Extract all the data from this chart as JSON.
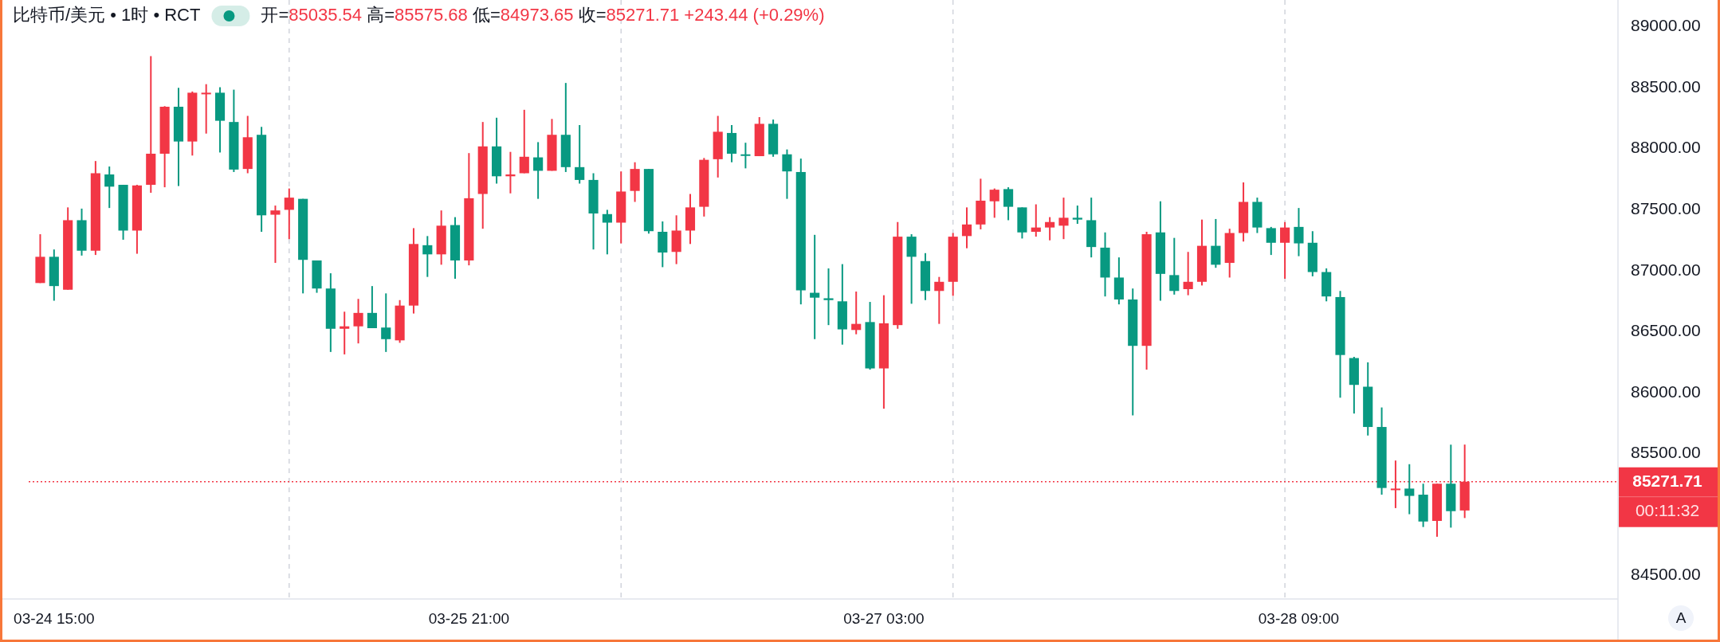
{
  "chart_data": {
    "type": "candlestick",
    "title": "比特币/美元 • 1时 • RCT",
    "subtitle": "开=85035.54 高=85575.68 低=84973.65 收=85271.71 +243.44 (+0.29%)",
    "x": [
      "--03-24T14:00",
      "--03-24T15:00",
      "--03-24T16:00",
      "--03-24T17:00",
      "--03-24T18:00",
      "--03-24T19:00",
      "--03-24T20:00",
      "--03-24T21:00",
      "--03-24T22:00",
      "--03-24T23:00",
      "--03-25T00:00",
      "--03-25T01:00",
      "--03-25T02:00",
      "--03-25T03:00",
      "--03-25T04:00",
      "--03-25T05:00",
      "--03-25T06:00",
      "--03-25T07:00",
      "--03-25T08:00",
      "--03-25T09:00",
      "--03-25T10:00",
      "--03-25T11:00",
      "--03-25T12:00",
      "--03-25T13:00",
      "--03-25T14:00",
      "--03-25T15:00",
      "--03-25T16:00",
      "--03-25T17:00",
      "--03-25T18:00",
      "--03-25T19:00",
      "--03-25T20:00",
      "--03-25T21:00",
      "--03-25T22:00",
      "--03-25T23:00",
      "--03-26T00:00",
      "--03-26T01:00",
      "--03-26T02:00",
      "--03-26T03:00",
      "--03-26T04:00",
      "--03-26T05:00",
      "--03-26T06:00",
      "--03-26T07:00",
      "--03-26T08:00",
      "--03-26T09:00",
      "--03-26T10:00",
      "--03-26T11:00",
      "--03-26T12:00",
      "--03-26T13:00",
      "--03-26T14:00",
      "--03-26T15:00",
      "--03-26T16:00",
      "--03-26T17:00",
      "--03-26T18:00",
      "--03-26T19:00",
      "--03-26T20:00",
      "--03-26T21:00",
      "--03-26T22:00",
      "--03-26T23:00",
      "--03-27T00:00",
      "--03-27T01:00",
      "--03-27T02:00",
      "--03-27T03:00",
      "--03-27T04:00",
      "--03-27T05:00",
      "--03-27T06:00",
      "--03-27T07:00",
      "--03-27T08:00",
      "--03-27T09:00",
      "--03-27T10:00",
      "--03-27T11:00",
      "--03-27T12:00",
      "--03-27T13:00",
      "--03-27T14:00",
      "--03-27T15:00",
      "--03-27T16:00",
      "--03-27T17:00",
      "--03-27T18:00",
      "--03-27T19:00",
      "--03-27T20:00",
      "--03-27T21:00",
      "--03-27T22:00",
      "--03-27T23:00",
      "--03-28T00:00",
      "--03-28T01:00",
      "--03-28T02:00",
      "--03-28T03:00",
      "--03-28T04:00",
      "--03-28T05:00",
      "--03-28T06:00",
      "--03-28T07:00",
      "--03-28T08:00",
      "--03-28T09:00",
      "--03-28T10:00",
      "--03-28T11:00",
      "--03-28T12:00",
      "--03-28T13:00",
      "--03-28T14:00",
      "--03-28T15:00",
      "--03-28T16:00",
      "--03-28T17:00",
      "--03-28T18:00",
      "--03-28T19:00",
      "--03-28T20:00",
      "--03-28T21:00"
    ],
    "ohlc": [
      [
        86900,
        87300,
        86900,
        87115
      ],
      [
        87115,
        87175,
        86755,
        86875
      ],
      [
        86845,
        87520,
        86845,
        87415
      ],
      [
        87415,
        87510,
        87125,
        87165
      ],
      [
        87165,
        87900,
        87130,
        87800
      ],
      [
        87790,
        87855,
        87515,
        87690
      ],
      [
        87705,
        87705,
        87255,
        87330
      ],
      [
        87330,
        87705,
        87140,
        87700
      ],
      [
        87705,
        88760,
        87640,
        87960
      ],
      [
        87960,
        88350,
        87685,
        88345
      ],
      [
        88345,
        88500,
        87695,
        88060
      ],
      [
        88060,
        88470,
        87945,
        88460
      ],
      [
        88450,
        88530,
        88125,
        88460
      ],
      [
        88460,
        88505,
        87970,
        88230
      ],
      [
        88220,
        88485,
        87810,
        87830
      ],
      [
        87835,
        88270,
        87800,
        88095
      ],
      [
        88115,
        88180,
        87320,
        87455
      ],
      [
        87460,
        87535,
        87065,
        87495
      ],
      [
        87500,
        87675,
        87260,
        87600
      ],
      [
        87590,
        87590,
        86815,
        87090
      ],
      [
        87085,
        87085,
        86820,
        86855
      ],
      [
        86855,
        86980,
        86335,
        86525
      ],
      [
        86525,
        86665,
        86315,
        86545
      ],
      [
        86545,
        86770,
        86405,
        86655
      ],
      [
        86655,
        86875,
        86530,
        86530
      ],
      [
        86535,
        86815,
        86335,
        86440
      ],
      [
        86430,
        86760,
        86410,
        86715
      ],
      [
        86715,
        87350,
        86650,
        87220
      ],
      [
        87210,
        87285,
        86950,
        87135
      ],
      [
        87135,
        87495,
        87050,
        87370
      ],
      [
        87375,
        87440,
        86935,
        87085
      ],
      [
        87085,
        87965,
        87045,
        87595
      ],
      [
        87630,
        88220,
        87345,
        88020
      ],
      [
        88020,
        88255,
        87715,
        87775
      ],
      [
        87775,
        87975,
        87635,
        87790
      ],
      [
        87800,
        88320,
        87800,
        87935
      ],
      [
        87930,
        88055,
        87590,
        87820
      ],
      [
        87820,
        88245,
        87820,
        88115
      ],
      [
        88115,
        88540,
        87810,
        87850
      ],
      [
        87850,
        88195,
        87715,
        87745
      ],
      [
        87745,
        87800,
        87175,
        87470
      ],
      [
        87465,
        87500,
        87135,
        87395
      ],
      [
        87395,
        87815,
        87225,
        87650
      ],
      [
        87655,
        87890,
        87565,
        87835
      ],
      [
        87835,
        87835,
        87305,
        87325
      ],
      [
        87320,
        87405,
        87030,
        87150
      ],
      [
        87155,
        87455,
        87055,
        87330
      ],
      [
        87330,
        87630,
        87220,
        87520
      ],
      [
        87525,
        87925,
        87445,
        87910
      ],
      [
        87915,
        88270,
        87765,
        88140
      ],
      [
        88130,
        88195,
        87890,
        87960
      ],
      [
        87955,
        88050,
        87840,
        87945
      ],
      [
        87940,
        88260,
        87940,
        88205
      ],
      [
        88205,
        88240,
        87935,
        87955
      ],
      [
        87955,
        87995,
        87590,
        87815
      ],
      [
        87810,
        87920,
        86725,
        86840
      ],
      [
        86820,
        87295,
        86440,
        86780
      ],
      [
        86775,
        87020,
        86555,
        86760
      ],
      [
        86750,
        87055,
        86395,
        86520
      ],
      [
        86515,
        86830,
        86480,
        86565
      ],
      [
        86580,
        86745,
        86190,
        86200
      ],
      [
        86200,
        86800,
        85870,
        86570
      ],
      [
        86555,
        87400,
        86525,
        87280
      ],
      [
        87280,
        87300,
        86730,
        87115
      ],
      [
        87080,
        87145,
        86760,
        86835
      ],
      [
        86835,
        86950,
        86565,
        86910
      ],
      [
        86910,
        87310,
        86795,
        87280
      ],
      [
        87285,
        87520,
        87185,
        87380
      ],
      [
        87380,
        87755,
        87340,
        87575
      ],
      [
        87570,
        87675,
        87435,
        87665
      ],
      [
        87670,
        87685,
        87415,
        87525
      ],
      [
        87520,
        87520,
        87265,
        87315
      ],
      [
        87320,
        87545,
        87280,
        87355
      ],
      [
        87355,
        87440,
        87250,
        87400
      ],
      [
        87370,
        87600,
        87260,
        87435
      ],
      [
        87435,
        87535,
        87385,
        87420
      ],
      [
        87415,
        87600,
        87110,
        87195
      ],
      [
        87190,
        87315,
        86790,
        86945
      ],
      [
        86945,
        87110,
        86725,
        86765
      ],
      [
        86765,
        86855,
        85815,
        86385
      ],
      [
        86385,
        87320,
        86190,
        87300
      ],
      [
        87315,
        87570,
        86755,
        86975
      ],
      [
        86965,
        87270,
        86805,
        86835
      ],
      [
        86850,
        87155,
        86800,
        86910
      ],
      [
        86910,
        87420,
        86880,
        87205
      ],
      [
        87205,
        87425,
        87025,
        87050
      ],
      [
        87065,
        87345,
        86945,
        87310
      ],
      [
        87310,
        87725,
        87240,
        87565
      ],
      [
        87565,
        87600,
        87310,
        87355
      ],
      [
        87350,
        87360,
        87130,
        87230
      ],
      [
        87230,
        87400,
        86935,
        87355
      ],
      [
        87360,
        87515,
        87120,
        87225
      ],
      [
        87230,
        87325,
        86955,
        86990
      ],
      [
        86990,
        87020,
        86750,
        86790
      ],
      [
        86785,
        86835,
        85960,
        86310
      ],
      [
        86285,
        86295,
        85830,
        86065
      ],
      [
        86050,
        86250,
        85650,
        85720
      ],
      [
        85720,
        85880,
        85165,
        85220
      ],
      [
        85205,
        85445,
        85055,
        85215
      ],
      [
        85215,
        85415,
        85005,
        85155
      ],
      [
        85165,
        85255,
        84900,
        84945
      ],
      [
        84950,
        85255,
        84820,
        85255
      ],
      [
        85255,
        85575,
        84895,
        85030
      ],
      [
        85035.54,
        85575.68,
        84973.65,
        85271.71
      ]
    ],
    "colors": [
      "#f23645",
      "#089981",
      "#f23645",
      "#089981",
      "#f23645",
      "#089981",
      "#089981",
      "#f23645",
      "#f23645",
      "#f23645",
      "#089981",
      "#f23645",
      "#f23645",
      "#089981",
      "#089981",
      "#f23645",
      "#089981",
      "#f23645",
      "#f23645",
      "#089981",
      "#089981",
      "#089981",
      "#f23645",
      "#f23645",
      "#089981",
      "#089981",
      "#f23645",
      "#f23645",
      "#089981",
      "#f23645",
      "#089981",
      "#f23645",
      "#f23645",
      "#089981",
      "#f23645",
      "#f23645",
      "#089981",
      "#f23645",
      "#089981",
      "#089981",
      "#089981",
      "#089981",
      "#f23645",
      "#f23645",
      "#089981",
      "#089981",
      "#f23645",
      "#f23645",
      "#f23645",
      "#f23645",
      "#089981",
      "#089981",
      "#f23645",
      "#089981",
      "#089981",
      "#089981",
      "#089981",
      "#089981",
      "#089981",
      "#f23645",
      "#089981",
      "#f23645",
      "#f23645",
      "#089981",
      "#089981",
      "#f23645",
      "#f23645",
      "#f23645",
      "#f23645",
      "#f23645",
      "#089981",
      "#089981",
      "#f23645",
      "#f23645",
      "#f23645",
      "#089981",
      "#089981",
      "#089981",
      "#089981",
      "#089981",
      "#f23645",
      "#089981",
      "#089981",
      "#f23645",
      "#f23645",
      "#089981",
      "#f23645",
      "#f23645",
      "#089981",
      "#089981",
      "#f23645",
      "#089981",
      "#089981",
      "#089981",
      "#089981",
      "#089981",
      "#089981",
      "#089981",
      "#f23645",
      "#089981",
      "#089981",
      "#f23645",
      "#089981",
      "#f23645"
    ],
    "xlim": [
      "--03-24T13:10",
      "--03-29T08:05"
    ],
    "xticks": [
      {
        "value": "--03-24T15:00",
        "label": "03-24 15:00"
      },
      {
        "value": "--03-25T21:00",
        "label": "03-25 21:00"
      },
      {
        "value": "--03-27T03:00",
        "label": "03-27 03:00"
      },
      {
        "value": "--03-28T09:00",
        "label": "03-28 09:00"
      }
    ],
    "ylim": [
      84310,
      89220
    ],
    "yticks": [
      {
        "value": 84500,
        "label": "84500.00"
      },
      {
        "value": 85500,
        "label": "85500.00"
      },
      {
        "value": 86000,
        "label": "86000.00"
      },
      {
        "value": 86500,
        "label": "86500.00"
      },
      {
        "value": 87000,
        "label": "87000.00"
      },
      {
        "value": 87500,
        "label": "87500.00"
      },
      {
        "value": 88000,
        "label": "88000.00"
      },
      {
        "value": 88500,
        "label": "88500.00"
      },
      {
        "value": 89000,
        "label": "89000.00"
      }
    ],
    "ref_lines": [
      {
        "axis": "x",
        "value": "--03-25T08:00",
        "color": "#d1d4dc",
        "line_style": "dashed"
      },
      {
        "axis": "x",
        "value": "--03-26T08:00",
        "color": "#d1d4dc",
        "line_style": "dashed"
      },
      {
        "axis": "x",
        "value": "--03-27T08:00",
        "color": "#d1d4dc",
        "line_style": "dashed"
      },
      {
        "axis": "x",
        "value": "--03-28T08:00",
        "color": "#d1d4dc",
        "line_style": "dashed"
      },
      {
        "axis": "y",
        "value": 85271.71,
        "label": "85271.71",
        "color": "#f23645",
        "line_style": "dotted"
      }
    ],
    "annotations": [
      "00:11:32",
      "A"
    ]
  }
}
